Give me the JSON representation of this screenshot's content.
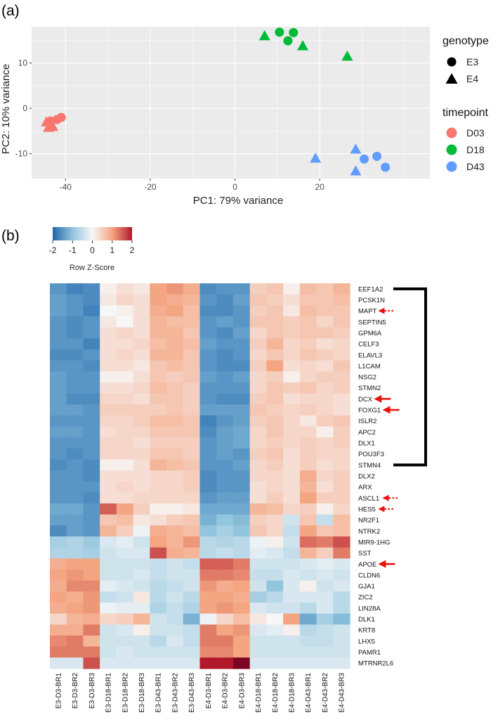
{
  "chart_data": [
    {
      "type": "scatter",
      "panel_label": "(a)",
      "xlabel": "PC1: 79% variance",
      "ylabel": "PC2: 10% variance",
      "xlim": [
        -48,
        46
      ],
      "ylim": [
        -15.5,
        18
      ],
      "xticks": [
        -40,
        -20,
        0,
        20
      ],
      "yticks": [
        -10,
        0,
        10
      ],
      "grid": true,
      "legend": {
        "shape_title": "genotype",
        "shapes": [
          {
            "label": "E3",
            "marker": "circle"
          },
          {
            "label": "E4",
            "marker": "triangle"
          }
        ],
        "color_title": "timepoint",
        "colors": [
          {
            "label": "D03",
            "color": "#F8766D"
          },
          {
            "label": "D18",
            "color": "#00BA38"
          },
          {
            "label": "D43",
            "color": "#619CFF"
          }
        ]
      },
      "points": [
        {
          "x": -42.0,
          "y": -2.5,
          "genotype": "E3",
          "timepoint": "D03"
        },
        {
          "x": -41.0,
          "y": -2.0,
          "genotype": "E3",
          "timepoint": "D03"
        },
        {
          "x": -43.5,
          "y": -2.8,
          "genotype": "E3",
          "timepoint": "D03"
        },
        {
          "x": -44.5,
          "y": -3.0,
          "genotype": "E4",
          "timepoint": "D03"
        },
        {
          "x": -44.0,
          "y": -4.2,
          "genotype": "E4",
          "timepoint": "D03"
        },
        {
          "x": -43.0,
          "y": -4.0,
          "genotype": "E4",
          "timepoint": "D03"
        },
        {
          "x": 10.5,
          "y": 16.8,
          "genotype": "E3",
          "timepoint": "D18"
        },
        {
          "x": 12.5,
          "y": 14.9,
          "genotype": "E3",
          "timepoint": "D18"
        },
        {
          "x": 13.8,
          "y": 16.7,
          "genotype": "E3",
          "timepoint": "D18"
        },
        {
          "x": 7.0,
          "y": 16.0,
          "genotype": "E4",
          "timepoint": "D18"
        },
        {
          "x": 16.0,
          "y": 13.8,
          "genotype": "E4",
          "timepoint": "D18"
        },
        {
          "x": 26.5,
          "y": 11.5,
          "genotype": "E4",
          "timepoint": "D18"
        },
        {
          "x": 30.5,
          "y": -11.2,
          "genotype": "E3",
          "timepoint": "D43"
        },
        {
          "x": 33.5,
          "y": -10.6,
          "genotype": "E3",
          "timepoint": "D43"
        },
        {
          "x": 35.5,
          "y": -13.0,
          "genotype": "E3",
          "timepoint": "D43"
        },
        {
          "x": 19.0,
          "y": -11.0,
          "genotype": "E4",
          "timepoint": "D43"
        },
        {
          "x": 28.5,
          "y": -9.0,
          "genotype": "E4",
          "timepoint": "D43"
        },
        {
          "x": 28.5,
          "y": -13.8,
          "genotype": "E4",
          "timepoint": "D43"
        }
      ]
    },
    {
      "type": "heatmap",
      "panel_label": "(b)",
      "colorkey": {
        "title": "Row Z-Score",
        "ticks": [
          -2,
          -1,
          0,
          1,
          2
        ],
        "low_color": "#2166AC",
        "mid_color": "#F7F7F7",
        "high_color": "#B2182B"
      },
      "columns": [
        "E3-D3-BR1",
        "E3-D3-BR2",
        "E3-D3-BR3",
        "E3-D18-BR1",
        "E3-D18-BR2",
        "E3-D18-BR3",
        "E3-D43-BR1",
        "E3-D43-BR2",
        "E3-D43-BR3",
        "E4-D3-BR1",
        "E4-D3-BR2",
        "E4-D3-BR3",
        "E4-D18-BR1",
        "E4-D18-BR2",
        "E4-D18-BR3",
        "E4-D43-BR1",
        "E4-D43-BR2",
        "E4-D43-BR3"
      ],
      "rows": [
        "EEF1A2",
        "PCSK1N",
        "MAPT",
        "SEPTIN5",
        "GPM6A",
        "CELF3",
        "ELAVL3",
        "L1CAM",
        "NSG2",
        "STMN2",
        "DCX",
        "FOXG1",
        "ISLR2",
        "APC2",
        "DLX1",
        "POU3F3",
        "STMN4",
        "DLX2",
        "ARX",
        "ASCL1",
        "HES5",
        "NR2F1",
        "NTRK2",
        "MIR9-1HG",
        "SST",
        "APOE",
        "CLDN6",
        "GJA1",
        "ZIC2",
        "LIN28A",
        "DLK1",
        "KRT8",
        "LHX5",
        "PAMR1",
        "MTRNR2L6"
      ],
      "values": [
        [
          -1.5,
          -1.7,
          -1.6,
          0.1,
          0.3,
          0.2,
          1.0,
          1.1,
          0.9,
          -1.6,
          -1.5,
          -1.5,
          0.5,
          0.6,
          0.1,
          0.7,
          0.6,
          0.8
        ],
        [
          -1.4,
          -1.5,
          -1.6,
          0.2,
          0.4,
          0.3,
          1.0,
          0.9,
          0.8,
          -1.5,
          -1.6,
          -1.4,
          0.6,
          0.5,
          0.3,
          0.6,
          0.6,
          0.7
        ],
        [
          -1.4,
          -1.5,
          -1.7,
          0.0,
          0.1,
          0.3,
          0.9,
          1.0,
          0.7,
          -1.6,
          -1.6,
          -1.5,
          0.5,
          0.6,
          0.2,
          0.7,
          0.6,
          0.6
        ],
        [
          -1.5,
          -1.6,
          -1.5,
          0.2,
          0.0,
          0.3,
          0.8,
          0.7,
          0.7,
          -1.5,
          -1.4,
          -1.5,
          0.6,
          0.6,
          0.5,
          0.6,
          0.4,
          0.6
        ],
        [
          -1.5,
          -1.6,
          -1.5,
          0.3,
          0.4,
          0.3,
          0.8,
          0.8,
          0.6,
          -1.5,
          -1.6,
          -1.4,
          0.4,
          0.6,
          0.5,
          0.6,
          0.6,
          0.5
        ],
        [
          -1.5,
          -1.5,
          -1.7,
          0.3,
          0.3,
          0.4,
          0.7,
          0.8,
          0.7,
          -1.4,
          -1.5,
          -1.5,
          0.5,
          0.8,
          0.4,
          0.5,
          0.3,
          0.4
        ],
        [
          -1.6,
          -1.6,
          -1.5,
          0.3,
          0.4,
          0.3,
          0.8,
          0.8,
          0.6,
          -1.5,
          -1.6,
          -1.5,
          0.4,
          0.6,
          0.4,
          0.6,
          0.5,
          0.4
        ],
        [
          -1.5,
          -1.5,
          -1.6,
          0.3,
          0.3,
          0.2,
          0.6,
          0.7,
          0.6,
          -1.5,
          -1.6,
          -1.6,
          0.5,
          1.0,
          0.3,
          0.4,
          0.3,
          0.6
        ],
        [
          -1.4,
          -1.5,
          -1.5,
          0.1,
          0.1,
          0.3,
          0.6,
          0.5,
          0.6,
          -1.4,
          -1.5,
          -1.4,
          0.4,
          0.5,
          0.1,
          0.4,
          0.5,
          0.5
        ],
        [
          -1.4,
          -1.5,
          -1.5,
          0.3,
          0.3,
          0.4,
          0.7,
          0.6,
          0.5,
          -1.5,
          -1.5,
          -1.5,
          0.4,
          0.6,
          0.5,
          0.6,
          0.4,
          0.5
        ],
        [
          -1.4,
          -1.6,
          -1.6,
          0.4,
          0.4,
          0.3,
          0.6,
          0.6,
          0.5,
          -1.5,
          -1.6,
          -1.6,
          0.5,
          0.6,
          0.3,
          0.4,
          0.4,
          0.3
        ],
        [
          -1.4,
          -1.4,
          -1.5,
          0.5,
          0.5,
          0.5,
          0.5,
          0.6,
          0.5,
          -1.4,
          -1.4,
          -1.4,
          0.6,
          0.5,
          0.4,
          0.5,
          0.4,
          0.3
        ],
        [
          -1.5,
          -1.5,
          -1.5,
          0.4,
          0.4,
          0.5,
          0.7,
          0.7,
          0.6,
          -1.7,
          -1.5,
          -1.4,
          0.5,
          0.6,
          0.4,
          0.2,
          0.5,
          0.6
        ],
        [
          -1.4,
          -1.4,
          -1.5,
          0.3,
          0.4,
          0.4,
          0.6,
          0.6,
          0.6,
          -1.6,
          -1.4,
          -1.3,
          0.4,
          0.6,
          0.4,
          0.4,
          0.1,
          0.5
        ],
        [
          -1.5,
          -1.5,
          -1.5,
          0.4,
          0.4,
          0.3,
          0.5,
          0.5,
          0.5,
          -1.5,
          -1.4,
          -1.3,
          0.4,
          0.5,
          0.4,
          0.5,
          0.4,
          0.5
        ],
        [
          -1.5,
          -1.6,
          -1.5,
          0.4,
          0.4,
          0.4,
          0.6,
          0.6,
          0.5,
          -1.5,
          -1.4,
          -1.5,
          0.5,
          0.6,
          0.3,
          0.5,
          0.4,
          0.4
        ],
        [
          -1.6,
          -1.5,
          -1.6,
          0.1,
          0.1,
          0.3,
          0.8,
          0.7,
          0.6,
          -1.5,
          -1.5,
          -1.4,
          0.4,
          0.5,
          0.3,
          0.5,
          0.3,
          0.4
        ],
        [
          -1.5,
          -1.5,
          -1.6,
          0.3,
          0.3,
          0.3,
          0.4,
          0.4,
          0.5,
          -1.6,
          -1.5,
          -1.5,
          0.4,
          0.4,
          0.3,
          0.9,
          0.4,
          0.5
        ],
        [
          -1.5,
          -1.5,
          -1.5,
          0.3,
          0.4,
          0.3,
          0.4,
          0.4,
          0.5,
          -1.6,
          -1.5,
          -1.5,
          0.3,
          0.4,
          0.3,
          0.8,
          0.3,
          0.5
        ],
        [
          -1.5,
          -1.5,
          -1.6,
          0.3,
          0.3,
          0.4,
          0.4,
          0.4,
          0.4,
          -1.5,
          -1.4,
          -1.4,
          0.3,
          0.5,
          0.3,
          1.0,
          0.5,
          0.5
        ],
        [
          -1.3,
          -1.3,
          -1.5,
          1.5,
          1.0,
          0.5,
          0.1,
          0.1,
          0.2,
          -1.3,
          -1.3,
          -1.3,
          0.8,
          0.7,
          0.4,
          0.5,
          0.1,
          0.4
        ],
        [
          -1.4,
          -1.4,
          -1.5,
          0.6,
          0.7,
          0.2,
          0.3,
          0.5,
          0.6,
          -1.2,
          -1.0,
          -1.1,
          0.5,
          0.4,
          -0.4,
          0.6,
          -0.5,
          0.7
        ],
        [
          -1.6,
          -1.4,
          -1.5,
          0.8,
          0.5,
          -0.1,
          0.9,
          0.8,
          0.7,
          -1.0,
          -0.8,
          -1.0,
          0.6,
          0.4,
          -0.5,
          1.0,
          0.6,
          0.7
        ],
        [
          -0.8,
          -0.7,
          -0.9,
          -0.3,
          -0.2,
          -0.4,
          1.0,
          0.8,
          1.1,
          -0.6,
          -0.7,
          -0.6,
          -0.1,
          0.1,
          -0.4,
          1.4,
          1.3,
          1.6
        ],
        [
          -0.7,
          -0.7,
          -0.8,
          -0.4,
          -0.3,
          -0.3,
          1.6,
          0.9,
          0.8,
          -0.6,
          -0.5,
          -0.6,
          -0.2,
          -0.3,
          -0.5,
          0.8,
          0.5,
          1.3
        ],
        [
          0.9,
          1.0,
          1.0,
          -0.4,
          -0.4,
          -0.4,
          -0.5,
          -0.4,
          -0.5,
          1.5,
          1.5,
          1.3,
          -0.4,
          -0.4,
          -0.4,
          -0.3,
          -0.2,
          -0.3
        ],
        [
          1.0,
          1.1,
          1.0,
          -0.4,
          -0.4,
          -0.3,
          -0.5,
          -0.4,
          -0.4,
          1.3,
          1.3,
          1.2,
          -0.5,
          -0.5,
          -0.3,
          -0.4,
          -0.3,
          -0.4
        ],
        [
          0.9,
          1.2,
          1.2,
          -0.2,
          -0.3,
          -0.4,
          -0.6,
          -0.5,
          -0.4,
          1.1,
          0.9,
          1.0,
          -0.4,
          -1.0,
          -0.3,
          0.1,
          -0.4,
          -0.3
        ],
        [
          1.0,
          0.9,
          1.1,
          -0.5,
          -0.4,
          0.2,
          -0.6,
          -0.4,
          -0.6,
          1.0,
          1.0,
          0.9,
          -0.8,
          -0.6,
          -0.3,
          -0.3,
          -0.3,
          -0.6
        ],
        [
          0.9,
          1.0,
          1.1,
          -0.1,
          -0.2,
          -0.2,
          -0.7,
          -0.5,
          -0.7,
          1.0,
          1.1,
          1.0,
          -0.3,
          -0.4,
          -0.4,
          -0.6,
          -0.3,
          -0.6
        ],
        [
          0.4,
          0.8,
          0.9,
          0.4,
          0.5,
          0.8,
          -0.4,
          -0.5,
          -1.2,
          -0.1,
          0.4,
          0.7,
          0.2,
          0.0,
          1.0,
          -1.3,
          -0.8,
          -1.1
        ],
        [
          0.9,
          0.9,
          1.3,
          -0.4,
          -0.3,
          0.1,
          -0.4,
          -0.4,
          -0.5,
          1.3,
          1.0,
          1.1,
          -0.3,
          -0.2,
          0.1,
          -0.6,
          -0.5,
          -0.4
        ],
        [
          1.2,
          1.3,
          0.8,
          -0.4,
          -0.4,
          -0.4,
          -0.6,
          -0.3,
          -0.5,
          1.3,
          1.3,
          1.0,
          -0.4,
          -0.4,
          -0.4,
          -0.5,
          -0.5,
          -0.4
        ],
        [
          1.3,
          1.3,
          1.3,
          -0.4,
          -0.3,
          -0.4,
          -0.4,
          -0.4,
          -0.4,
          1.2,
          1.2,
          1.0,
          -0.4,
          -0.4,
          -0.4,
          -0.4,
          -0.4,
          -0.4
        ],
        [
          -0.3,
          -0.3,
          1.6,
          -0.3,
          -0.3,
          -0.3,
          -0.3,
          -0.3,
          -0.3,
          2.0,
          2.0,
          2.3,
          -0.3,
          -0.3,
          -0.3,
          -0.3,
          -0.3,
          -0.3
        ]
      ],
      "annotations": {
        "solid_arrows": [
          "DCX",
          "FOXG1",
          "APOE"
        ],
        "dashed_arrows": [
          "MAPT",
          "ASCL1",
          "HES5"
        ],
        "bracket_range": [
          "EEF1A2",
          "STMN4"
        ]
      }
    }
  ]
}
